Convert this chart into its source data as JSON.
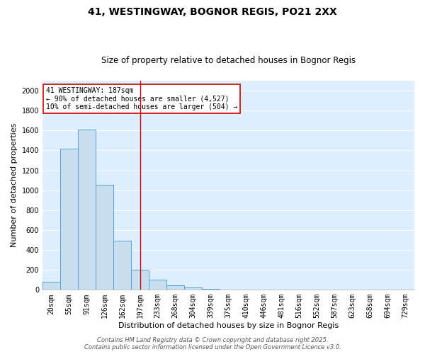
{
  "title": "41, WESTINGWAY, BOGNOR REGIS, PO21 2XX",
  "subtitle": "Size of property relative to detached houses in Bognor Regis",
  "xlabel": "Distribution of detached houses by size in Bognor Regis",
  "ylabel": "Number of detached properties",
  "bar_labels": [
    "20sqm",
    "55sqm",
    "91sqm",
    "126sqm",
    "162sqm",
    "197sqm",
    "233sqm",
    "268sqm",
    "304sqm",
    "339sqm",
    "375sqm",
    "410sqm",
    "446sqm",
    "481sqm",
    "516sqm",
    "552sqm",
    "587sqm",
    "623sqm",
    "658sqm",
    "694sqm",
    "729sqm"
  ],
  "bar_values": [
    80,
    1420,
    1610,
    1055,
    490,
    205,
    105,
    45,
    25,
    12,
    5,
    0,
    0,
    0,
    0,
    0,
    0,
    0,
    0,
    0,
    0
  ],
  "bar_color": "#c8dff0",
  "bar_edge_color": "#5a9fd4",
  "vline_color": "#cc0000",
  "annotation_text": "41 WESTINGWAY: 187sqm\n← 90% of detached houses are smaller (4,527)\n10% of semi-detached houses are larger (504) →",
  "annotation_box_color": "white",
  "annotation_box_edge": "#cc0000",
  "ylim": [
    0,
    2100
  ],
  "yticks": [
    0,
    200,
    400,
    600,
    800,
    1000,
    1200,
    1400,
    1600,
    1800,
    2000
  ],
  "background_color": "#ddeeff",
  "grid_color": "white",
  "footer_line1": "Contains HM Land Registry data © Crown copyright and database right 2025.",
  "footer_line2": "Contains public sector information licensed under the Open Government Licence v3.0.",
  "title_fontsize": 10,
  "subtitle_fontsize": 8.5,
  "axis_label_fontsize": 8,
  "tick_fontsize": 7,
  "annotation_fontsize": 7,
  "footer_fontsize": 6
}
